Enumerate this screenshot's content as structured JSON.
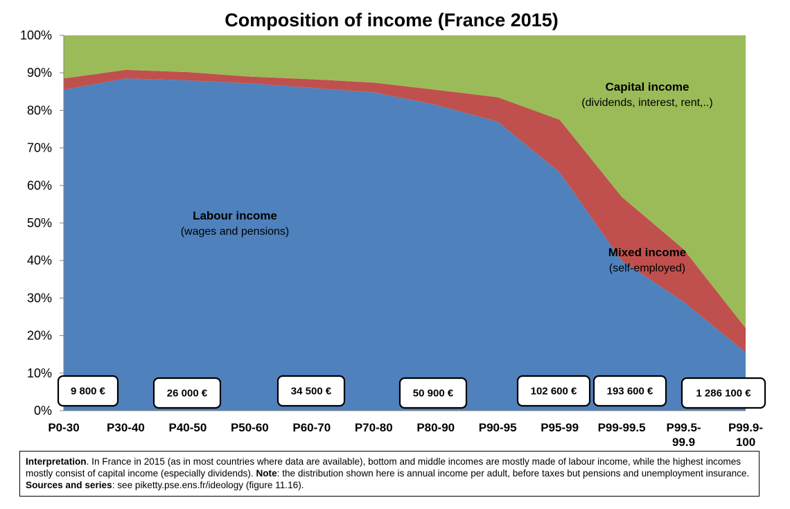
{
  "chart_data": {
    "type": "area",
    "stacked": true,
    "title": "Composition of income (France 2015)",
    "categories": [
      "P0-30",
      "P30-40",
      "P40-50",
      "P50-60",
      "P60-70",
      "P70-80",
      "P80-90",
      "P90-95",
      "P95-99",
      "P99-99.5",
      "P99.5-99.9",
      "P99.9-100"
    ],
    "category_lines": [
      [
        "P0-30"
      ],
      [
        "P30-40"
      ],
      [
        "P40-50"
      ],
      [
        "P50-60"
      ],
      [
        "P60-70"
      ],
      [
        "P70-80"
      ],
      [
        "P80-90"
      ],
      [
        "P90-95"
      ],
      [
        "P95-99"
      ],
      [
        "P99-99.5"
      ],
      [
        "P99.5-",
        "99.9"
      ],
      [
        "P99.9-",
        "100"
      ]
    ],
    "series": [
      {
        "name": "Labour income",
        "sublabel": "(wages and pensions)",
        "color": "#4f81bd",
        "values": [
          85.5,
          88.5,
          88,
          87.2,
          86,
          84.8,
          81.5,
          77,
          63.5,
          40,
          29,
          15.5
        ]
      },
      {
        "name": "Mixed income",
        "sublabel": "(self-employed)",
        "color": "#c0504d",
        "values": [
          3,
          2.3,
          2.2,
          1.8,
          2.3,
          2.6,
          4,
          6.5,
          14,
          17,
          14,
          6.5
        ]
      },
      {
        "name": "Capital income",
        "sublabel": "(dividends, interest, rent,..)",
        "color": "#9bbb59",
        "values": [
          11.5,
          9.2,
          9.8,
          11,
          11.7,
          12.6,
          14.5,
          16.5,
          22.5,
          43,
          57,
          78
        ]
      }
    ],
    "ylim": [
      0,
      100
    ],
    "yticks": [
      "0%",
      "10%",
      "20%",
      "30%",
      "40%",
      "50%",
      "60%",
      "70%",
      "80%",
      "90%",
      "100%"
    ],
    "average_income_labels": [
      "9 800 €",
      "26 000 €",
      "34 500 €",
      "50 900 €",
      "102 600 €",
      "193 600 €",
      "1 286 100 €"
    ],
    "grid": false,
    "legend": "none"
  },
  "note": {
    "interpretation_label": "Interpretation",
    "interpretation_text": ". In France in 2015 (as in most countries where data are available), bottom and middle incomes are mostly made of labour income, while the highest incomes mostly consist of capital income (especially dividends). ",
    "note_label": "Note",
    "note_text": ": the distribution shown here is annual income per adult, before taxes but pensions and unemployment insurance. ",
    "sources_label": "Sources and series",
    "sources_text": ": see piketty.pse.ens.fr/ideology (figure 11.16)."
  }
}
